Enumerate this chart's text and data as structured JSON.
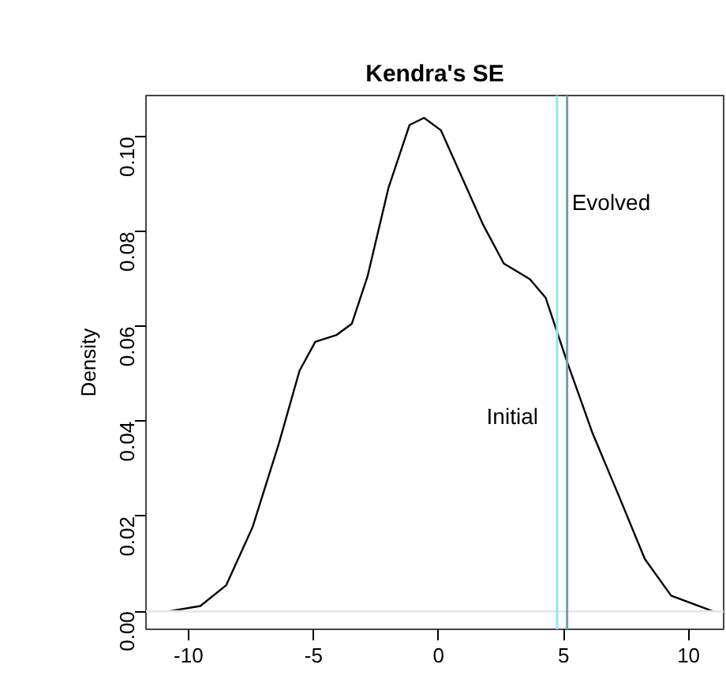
{
  "chart_data": {
    "type": "line",
    "title": "Kendra's SE",
    "ylabel": "Density",
    "x": [
      -10.78,
      -9.53,
      -8.49,
      -7.44,
      -6.39,
      -5.56,
      -4.93,
      -4.09,
      -3.47,
      -2.84,
      -2.0,
      -1.16,
      -0.58,
      0.09,
      0.93,
      1.77,
      2.61,
      3.65,
      4.28,
      5.12,
      6.16,
      7.21,
      8.25,
      9.3,
      10.97
    ],
    "series": [
      {
        "color": "#000000",
        "values": [
          0.0,
          0.0011,
          0.0055,
          0.0177,
          0.0353,
          0.0507,
          0.0568,
          0.0582,
          0.0606,
          0.0706,
          0.0893,
          0.1025,
          0.104,
          0.1014,
          0.0915,
          0.0816,
          0.0733,
          0.07,
          0.0661,
          0.0529,
          0.0375,
          0.0243,
          0.011,
          0.0033,
          0.0
        ]
      }
    ],
    "xlim": [
      -11.7,
      11.4
    ],
    "ylim": [
      -0.0038,
      0.1087
    ],
    "xticks": [
      -10,
      -5,
      0,
      5,
      10
    ],
    "yticks": [
      {
        "value": 0,
        "label": "0.00"
      },
      {
        "value": 0.02,
        "label": "0.02"
      },
      {
        "value": 0.04,
        "label": "0.04"
      },
      {
        "value": 0.06,
        "label": "0.06"
      },
      {
        "value": 0.08,
        "label": "0.08"
      },
      {
        "value": 0.1,
        "label": "0.10"
      }
    ],
    "ref_lines": [
      {
        "axis": "y",
        "value": 0,
        "color": "#e8e8e8"
      },
      {
        "axis": "x",
        "value": 4.74,
        "color": "#8ee8f0",
        "label": "Initial"
      },
      {
        "axis": "x",
        "value": 5.14,
        "color": "#6f9fae",
        "label": "Evolved"
      }
    ],
    "grid": false,
    "line_style": "solid",
    "marker": "none"
  }
}
